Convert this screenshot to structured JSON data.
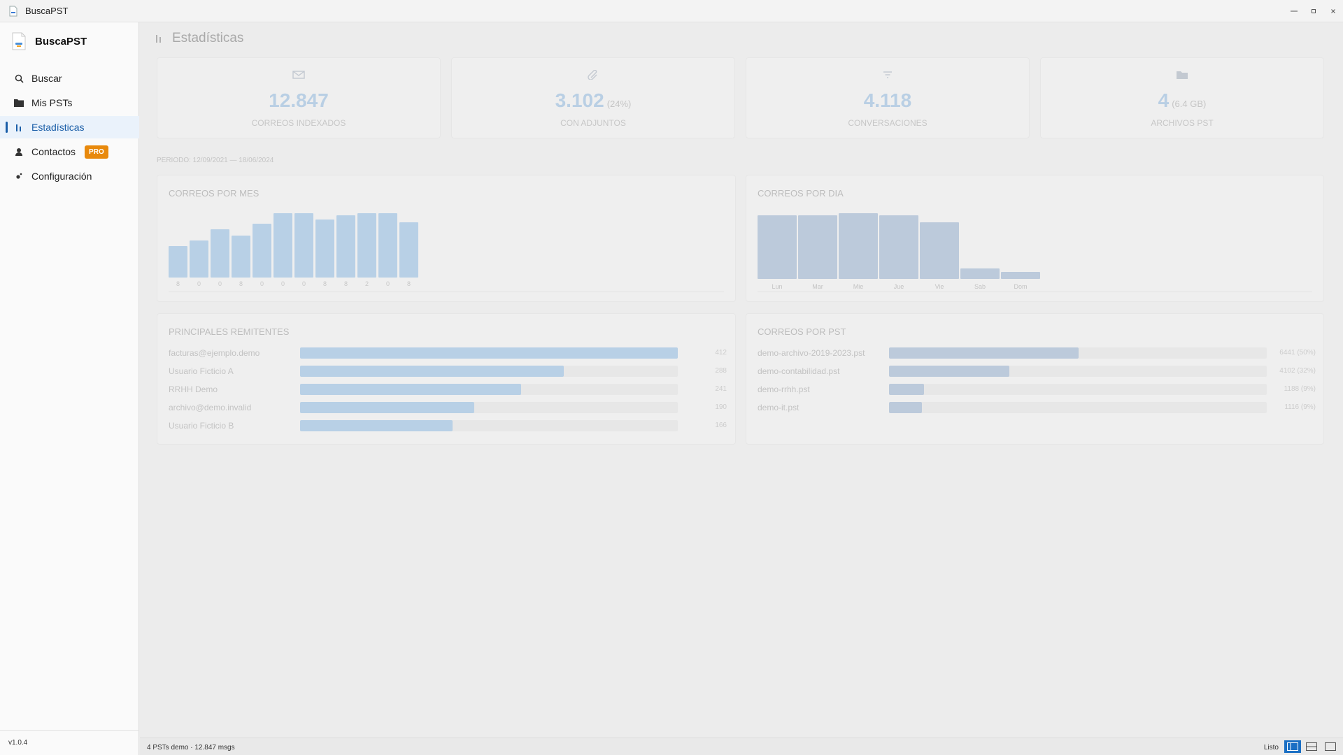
{
  "window": {
    "title": "BuscaPST",
    "controls": [
      "minimize-icon",
      "maximize-icon",
      "close-icon"
    ]
  },
  "sidebar": {
    "brand": "BuscaPST",
    "items": [
      {
        "label": "Buscar",
        "icon": "search-icon"
      },
      {
        "label": "Mis PSTs",
        "icon": "folder-icon"
      },
      {
        "label": "Estadísticas",
        "icon": "bar-chart-icon",
        "active": true
      },
      {
        "label": "Contactos",
        "icon": "person-icon",
        "badge": "PRO"
      },
      {
        "label": "Configuración",
        "icon": "gear-icon"
      }
    ],
    "version": "v1.0.4"
  },
  "header": {
    "title": "Estadísticas",
    "icon": "bar-chart-icon"
  },
  "stats": [
    {
      "value": "12.847",
      "sub": "",
      "label": "CORREOS INDEXADOS",
      "icon": "mail-icon"
    },
    {
      "value": "3.102",
      "sub": "(24%)",
      "label": "CON ADJUNTOS",
      "icon": "paperclip-icon"
    },
    {
      "value": "4.118",
      "sub": "",
      "label": "CONVERSACIONES",
      "icon": "filter-icon"
    },
    {
      "value": "4",
      "sub": "(6.4 GB)",
      "label": "ARCHIVOS PST",
      "icon": "folder-icon"
    }
  ],
  "period": "PERIODO: 12/09/2021 — 18/06/2024",
  "monthly": {
    "title": "CORREOS POR MES",
    "tick_labels": [
      "8",
      "0",
      "0",
      "8",
      "0",
      "0",
      "0",
      "8",
      "8",
      "2",
      "0",
      "8"
    ]
  },
  "daily": {
    "title": "CORREOS POR DIA",
    "tick_labels": [
      "Lun",
      "Mar",
      "Mie",
      "Jue",
      "Vie",
      "Sab",
      "Dom"
    ]
  },
  "senders": {
    "title": "PRINCIPALES REMITENTES",
    "rows": [
      {
        "name": "facturas@ejemplo.demo",
        "value": "412"
      },
      {
        "name": "Usuario Ficticio A",
        "value": "288"
      },
      {
        "name": "RRHH Demo",
        "value": "241"
      },
      {
        "name": "archivo@demo.invalid",
        "value": "190"
      },
      {
        "name": "Usuario Ficticio B",
        "value": "166"
      }
    ]
  },
  "per_pst": {
    "title": "CORREOS POR PST",
    "rows": [
      {
        "name": "demo-archivo-2019-2023.pst",
        "value": "6441 (50%)"
      },
      {
        "name": "demo-contabilidad.pst",
        "value": "4102 (32%)"
      },
      {
        "name": "demo-rrhh.pst",
        "value": "1188 (9%)"
      },
      {
        "name": "demo-it.pst",
        "value": "1116 (9%)"
      }
    ]
  },
  "chart_data": [
    {
      "type": "bar",
      "title": "CORREOS POR MES",
      "categories": [
        "8",
        "0",
        "0",
        "8",
        "0",
        "0",
        "0",
        "8",
        "8",
        "2",
        "0",
        "8"
      ],
      "values": [
        45,
        53,
        69,
        60,
        77,
        92,
        92,
        83,
        89,
        92,
        92,
        79
      ],
      "ylim": [
        0,
        92
      ]
    },
    {
      "type": "bar",
      "title": "CORREOS POR DIA",
      "categories": [
        "Lun",
        "Mar",
        "Mie",
        "Jue",
        "Vie",
        "Sab",
        "Dom"
      ],
      "values": [
        88,
        88,
        91,
        88,
        78,
        15,
        10
      ],
      "ylim": [
        0,
        91
      ]
    },
    {
      "type": "bar",
      "title": "PRINCIPALES REMITENTES",
      "categories": [
        "facturas@ejemplo.demo",
        "Usuario Ficticio A",
        "RRHH Demo",
        "archivo@demo.invalid",
        "Usuario Ficticio B"
      ],
      "values": [
        412,
        288,
        241,
        190,
        166
      ]
    },
    {
      "type": "bar",
      "title": "CORREOS POR PST",
      "categories": [
        "demo-archivo-2019-2023.pst",
        "demo-contabilidad.pst",
        "demo-rrhh.pst",
        "demo-it.pst"
      ],
      "values": [
        6441,
        4102,
        1188,
        1116
      ]
    }
  ],
  "status": {
    "left": "4 PSTs demo · 12.847 msgs",
    "right": "Listo"
  },
  "colors": {
    "accent": "#1a5ea8",
    "bar_month": "#b8d0e6",
    "bar_day": "#bccadb",
    "bar_sender": "#b8d0e6",
    "bar_pst": "#bccadb",
    "pro": "#e8890c"
  }
}
